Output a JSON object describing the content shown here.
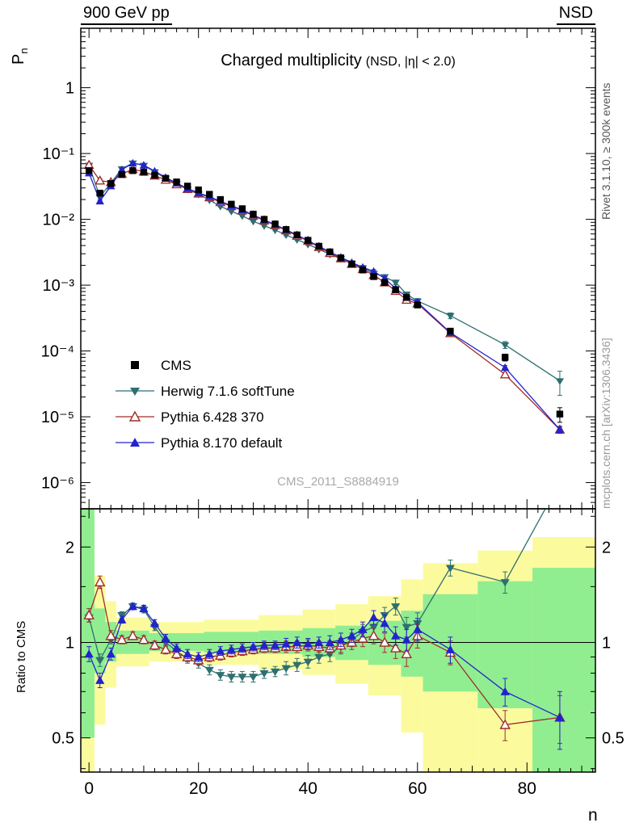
{
  "header": {
    "left": "900 GeV pp",
    "right": "NSD"
  },
  "title": {
    "main": "Charged multiplicity",
    "paren": "(NSD, |η| < 2.0)"
  },
  "watermark": "CMS_2011_S8884919",
  "side_notes": {
    "top": "Rivet 3.1.10, ≥ 300k events",
    "bottom": "mcplots.cern.ch [arXiv:1306.3436]"
  },
  "colors": {
    "cms": "#000000",
    "herwig": "#2e6f6f",
    "pythia6": "#a02c2c",
    "pythia8": "#2323cc",
    "band_yellow": "#fbfb9e",
    "band_green": "#90ee90",
    "frame": "#000000"
  },
  "axes": {
    "x": {
      "label": "n",
      "min": -1.5,
      "max": 92.5,
      "major_ticks": [
        0,
        20,
        40,
        60,
        80
      ]
    },
    "main_y": {
      "label_main": "P",
      "label_sub": "n",
      "min": 4e-07,
      "max": 8,
      "scale": "log",
      "ticks": [
        {
          "v": 1,
          "t": "1"
        },
        {
          "v": 0.1,
          "t": "10⁻¹"
        },
        {
          "v": 0.01,
          "t": "10⁻²"
        },
        {
          "v": 0.001,
          "t": "10⁻³"
        },
        {
          "v": 0.0001,
          "t": "10⁻⁴"
        },
        {
          "v": 1e-05,
          "t": "10⁻⁵"
        },
        {
          "v": 1e-06,
          "t": "10⁻⁶"
        }
      ]
    },
    "ratio_y": {
      "label": "Ratio to CMS",
      "min": 0.39,
      "max": 2.64,
      "scale": "log",
      "ticks": [
        {
          "v": 2,
          "t": "2"
        },
        {
          "v": 1,
          "t": "1"
        },
        {
          "v": 0.5,
          "t": "0.5"
        }
      ],
      "minor": [
        0.4,
        0.6,
        0.7,
        0.8,
        0.9,
        1.5,
        2.5
      ]
    }
  },
  "chart_data": {
    "type": "line",
    "yscale": "log",
    "xlabel": "n",
    "ylabel": "P_n",
    "ratio_label": "Ratio to CMS",
    "x": [
      0,
      2,
      4,
      6,
      8,
      10,
      12,
      14,
      16,
      18,
      20,
      22,
      24,
      26,
      28,
      30,
      32,
      34,
      36,
      38,
      40,
      42,
      44,
      46,
      48,
      50,
      52,
      54,
      56,
      58,
      60,
      66,
      76,
      86
    ],
    "series": [
      {
        "id": "cms",
        "name": "CMS",
        "marker": "square-filled",
        "color": "#000000",
        "P": [
          0.055,
          0.025,
          0.035,
          0.048,
          0.055,
          0.052,
          0.047,
          0.042,
          0.037,
          0.032,
          0.028,
          0.024,
          0.02,
          0.017,
          0.0145,
          0.012,
          0.01,
          0.0085,
          0.007,
          0.0058,
          0.0048,
          0.0039,
          0.0032,
          0.0026,
          0.0021,
          0.0017,
          0.00135,
          0.0011,
          0.00085,
          0.00065,
          0.0005,
          0.0002,
          8e-05,
          1.1e-05
        ],
        "rel_err": [
          0.02,
          0.02,
          0.02,
          0.02,
          0.02,
          0.02,
          0.02,
          0.02,
          0.02,
          0.02,
          0.02,
          0.02,
          0.02,
          0.02,
          0.02,
          0.02,
          0.02,
          0.02,
          0.02,
          0.02,
          0.02,
          0.02,
          0.02,
          0.02,
          0.02,
          0.02,
          0.03,
          0.03,
          0.03,
          0.04,
          0.04,
          0.08,
          0.12,
          0.25
        ]
      },
      {
        "id": "herwig",
        "name": "Herwig 7.1.6 softTune",
        "marker": "triangle-down-filled",
        "color": "#2e6f6f",
        "ratio": [
          1.2,
          0.88,
          1.02,
          1.22,
          1.3,
          1.27,
          1.12,
          1.0,
          0.94,
          0.89,
          0.86,
          0.82,
          0.79,
          0.78,
          0.78,
          0.78,
          0.8,
          0.81,
          0.83,
          0.85,
          0.87,
          0.9,
          0.92,
          0.97,
          1.02,
          1.08,
          1.12,
          1.22,
          1.3,
          1.12,
          1.15,
          1.72,
          1.55,
          3.2
        ],
        "err": [
          0.04,
          0.04,
          0.03,
          0.03,
          0.03,
          0.03,
          0.03,
          0.03,
          0.03,
          0.03,
          0.03,
          0.03,
          0.03,
          0.03,
          0.03,
          0.03,
          0.03,
          0.03,
          0.04,
          0.04,
          0.04,
          0.04,
          0.05,
          0.05,
          0.05,
          0.06,
          0.06,
          0.07,
          0.08,
          0.08,
          0.09,
          0.1,
          0.12,
          0.4
        ]
      },
      {
        "id": "pythia6",
        "name": "Pythia 6.428 370",
        "marker": "triangle-up-open",
        "color": "#a02c2c",
        "ratio": [
          1.22,
          1.55,
          1.05,
          1.02,
          1.05,
          1.02,
          0.98,
          0.95,
          0.92,
          0.9,
          0.88,
          0.9,
          0.91,
          0.93,
          0.94,
          0.95,
          0.96,
          0.96,
          0.97,
          0.97,
          0.98,
          0.97,
          0.96,
          0.98,
          1.0,
          1.03,
          1.05,
          1.0,
          0.96,
          0.92,
          1.05,
          0.93,
          0.55,
          0.58
        ],
        "err": [
          0.06,
          0.07,
          0.04,
          0.03,
          0.03,
          0.03,
          0.03,
          0.03,
          0.03,
          0.03,
          0.03,
          0.03,
          0.03,
          0.03,
          0.03,
          0.03,
          0.03,
          0.03,
          0.04,
          0.04,
          0.04,
          0.04,
          0.05,
          0.05,
          0.05,
          0.06,
          0.06,
          0.07,
          0.07,
          0.08,
          0.09,
          0.08,
          0.06,
          0.1
        ]
      },
      {
        "id": "pythia8",
        "name": "Pythia 8.170 default",
        "marker": "triangle-up-filled",
        "color": "#2323cc",
        "ratio": [
          0.92,
          0.76,
          0.92,
          1.18,
          1.3,
          1.28,
          1.15,
          1.03,
          0.96,
          0.92,
          0.9,
          0.92,
          0.94,
          0.95,
          0.96,
          0.97,
          0.98,
          0.98,
          0.99,
          1.0,
          0.99,
          1.0,
          1.0,
          1.02,
          1.05,
          1.1,
          1.2,
          1.15,
          1.05,
          1.02,
          1.1,
          0.95,
          0.7,
          0.58
        ],
        "err": [
          0.05,
          0.04,
          0.04,
          0.03,
          0.03,
          0.03,
          0.03,
          0.03,
          0.03,
          0.03,
          0.03,
          0.03,
          0.03,
          0.03,
          0.03,
          0.03,
          0.03,
          0.03,
          0.04,
          0.04,
          0.04,
          0.04,
          0.05,
          0.05,
          0.05,
          0.06,
          0.06,
          0.07,
          0.07,
          0.08,
          0.09,
          0.09,
          0.07,
          0.12
        ]
      }
    ],
    "bands": {
      "yellow": [
        [
          -1.5,
          1,
          0.28,
          2.64
        ],
        [
          1,
          3,
          0.55,
          1.62
        ],
        [
          3,
          5,
          0.72,
          1.35
        ],
        [
          5,
          11,
          0.84,
          1.2
        ],
        [
          11,
          21,
          0.87,
          1.16
        ],
        [
          21,
          31,
          0.85,
          1.18
        ],
        [
          31,
          39,
          0.82,
          1.22
        ],
        [
          39,
          45,
          0.79,
          1.27
        ],
        [
          45,
          51,
          0.74,
          1.32
        ],
        [
          51,
          57,
          0.68,
          1.4
        ],
        [
          57,
          61,
          0.52,
          1.58
        ],
        [
          61,
          71,
          0.38,
          1.78
        ],
        [
          71,
          81,
          0.33,
          1.95
        ],
        [
          81,
          92.5,
          0.3,
          2.15
        ]
      ],
      "green": [
        [
          -1.5,
          1,
          0.5,
          2.64
        ],
        [
          1,
          3,
          0.8,
          1.28
        ],
        [
          3,
          5,
          0.87,
          1.16
        ],
        [
          5,
          11,
          0.92,
          1.09
        ],
        [
          11,
          21,
          0.94,
          1.07
        ],
        [
          21,
          31,
          0.93,
          1.08
        ],
        [
          31,
          39,
          0.92,
          1.09
        ],
        [
          39,
          45,
          0.9,
          1.11
        ],
        [
          45,
          51,
          0.88,
          1.13
        ],
        [
          51,
          57,
          0.85,
          1.17
        ],
        [
          57,
          61,
          0.78,
          1.26
        ],
        [
          61,
          71,
          0.7,
          1.42
        ],
        [
          71,
          81,
          0.62,
          1.56
        ],
        [
          81,
          92.5,
          0.38,
          1.72
        ]
      ]
    }
  }
}
